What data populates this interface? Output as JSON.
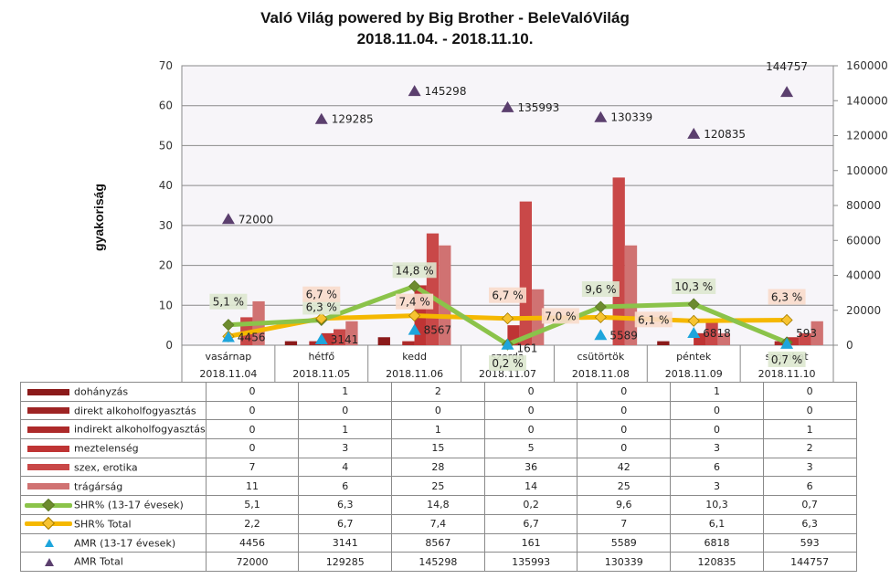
{
  "chart_data": {
    "type": "bar",
    "title": "Való Világ powered by Big Brother - BeleValóVilág",
    "subtitle": "2018.11.04. - 2018.11.10.",
    "ylabel": "gyakoriság",
    "xlabel": "",
    "ylim": [
      0,
      70
    ],
    "yticks": [
      "0",
      "10",
      "20",
      "30",
      "40",
      "50",
      "60",
      "70"
    ],
    "y2lim": [
      0,
      160000
    ],
    "y2ticks": [
      "0",
      "20000",
      "40000",
      "60000",
      "80000",
      "100000",
      "120000",
      "140000",
      "160000"
    ],
    "grid": true,
    "legend": "table-below",
    "categories": [
      "vasárnap",
      "hétfő",
      "kedd",
      "szerda",
      "csütörtök",
      "péntek",
      "szombat"
    ],
    "dates": [
      "2018.11.04",
      "2018.11.05",
      "2018.11.06",
      "2018.11.07",
      "2018.11.08",
      "2018.11.09",
      "2018.11.10"
    ],
    "series": [
      {
        "name": "dohányzás",
        "kind": "bar",
        "axis": "left",
        "color": "#8b1a1a",
        "values": [
          0,
          1,
          2,
          0,
          0,
          1,
          0
        ]
      },
      {
        "name": "direkt alkoholfogyasztás",
        "kind": "bar",
        "axis": "left",
        "color": "#9e2424",
        "values": [
          0,
          0,
          0,
          0,
          0,
          0,
          0
        ]
      },
      {
        "name": "indirekt alkoholfogyasztás",
        "kind": "bar",
        "axis": "left",
        "color": "#ad2a2a",
        "values": [
          0,
          1,
          1,
          0,
          0,
          0,
          1
        ]
      },
      {
        "name": "meztelenség",
        "kind": "bar",
        "axis": "left",
        "color": "#bf3434",
        "values": [
          0,
          3,
          15,
          5,
          0,
          3,
          2
        ]
      },
      {
        "name": "szex, erotika",
        "kind": "bar",
        "axis": "left",
        "color": "#c94848",
        "values": [
          7,
          4,
          28,
          36,
          42,
          6,
          3
        ]
      },
      {
        "name": "trágárság",
        "kind": "bar",
        "axis": "left",
        "color": "#d07272",
        "values": [
          11,
          6,
          25,
          14,
          25,
          3,
          6
        ]
      },
      {
        "name": "SHR% (13-17 évesek)",
        "kind": "line",
        "axis": "left",
        "color": "#8bc34a",
        "marker": "diamond",
        "marker_color": "#6d8b2f",
        "values": [
          5.1,
          6.3,
          14.8,
          0.2,
          9.6,
          10.3,
          0.7
        ],
        "labels": [
          "5,1 %",
          "6,3 %",
          "14,8 %",
          "0,2 %",
          "9,6 %",
          "10,3 %",
          "0,7 %"
        ],
        "label_bg": "#dde8cf"
      },
      {
        "name": "SHR% Total",
        "kind": "line",
        "axis": "left",
        "color": "#f5b800",
        "marker": "diamond",
        "marker_color": "#f7c331",
        "values": [
          2.2,
          6.7,
          7.4,
          6.7,
          7.0,
          6.1,
          6.3
        ],
        "labels": [
          "",
          "6,7 %",
          "7,4 %",
          "6,7 %",
          "7,0 %",
          "6,1 %",
          "6,3 %"
        ],
        "label_bg": "#f8dccb"
      },
      {
        "name": "AMR (13-17 évesek)",
        "kind": "marker",
        "axis": "right",
        "color": "#1ea5dc",
        "marker": "triangle",
        "values": [
          4456,
          3141,
          8567,
          161,
          5589,
          6818,
          593
        ],
        "labels": [
          "4456",
          "3141",
          "8567",
          "161",
          "5589",
          "6818",
          "593"
        ]
      },
      {
        "name": "AMR Total",
        "kind": "marker",
        "axis": "right",
        "color": "#5b3f6e",
        "marker": "triangle",
        "values": [
          72000,
          129285,
          145298,
          135993,
          130339,
          120835,
          144757
        ],
        "labels": [
          "72000",
          "129285",
          "145298",
          "135993",
          "130339",
          "120835",
          "144757"
        ]
      }
    ],
    "table_rows": [
      {
        "label": "dohányzás",
        "cells": [
          "0",
          "1",
          "2",
          "0",
          "0",
          "1",
          "0"
        ]
      },
      {
        "label": "direkt alkoholfogyasztás",
        "cells": [
          "0",
          "0",
          "0",
          "0",
          "0",
          "0",
          "0"
        ]
      },
      {
        "label": "indirekt alkoholfogyasztás",
        "cells": [
          "0",
          "1",
          "1",
          "0",
          "0",
          "0",
          "1"
        ]
      },
      {
        "label": "meztelenség",
        "cells": [
          "0",
          "3",
          "15",
          "5",
          "0",
          "3",
          "2"
        ]
      },
      {
        "label": "szex, erotika",
        "cells": [
          "7",
          "4",
          "28",
          "36",
          "42",
          "6",
          "3"
        ]
      },
      {
        "label": "trágárság",
        "cells": [
          "11",
          "6",
          "25",
          "14",
          "25",
          "3",
          "6"
        ]
      },
      {
        "label": "SHR% (13-17 évesek)",
        "cells": [
          "5,1",
          "6,3",
          "14,8",
          "0,2",
          "9,6",
          "10,3",
          "0,7"
        ]
      },
      {
        "label": "SHR% Total",
        "cells": [
          "2,2",
          "6,7",
          "7,4",
          "6,7",
          "7",
          "6,1",
          "6,3"
        ]
      },
      {
        "label": "AMR (13-17 évesek)",
        "cells": [
          "4456",
          "3141",
          "8567",
          "161",
          "5589",
          "6818",
          "593"
        ]
      },
      {
        "label": "AMR Total",
        "cells": [
          "72000",
          "129285",
          "145298",
          "135993",
          "130339",
          "120835",
          "144757"
        ]
      }
    ]
  }
}
